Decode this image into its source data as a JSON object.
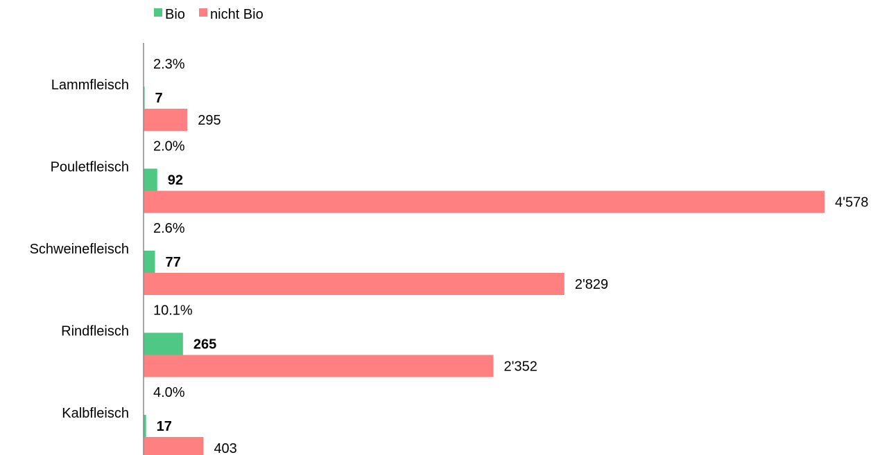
{
  "chart_data": {
    "type": "bar",
    "orientation": "horizontal",
    "categories": [
      "Lammfleisch",
      "Pouletfleisch",
      "Schweinefleisch",
      "Rindfleisch",
      "Kalbfleisch"
    ],
    "series": [
      {
        "name": "Bio",
        "color": "#4ec884",
        "values": [
          7,
          92,
          77,
          265,
          17
        ],
        "labels": [
          "7",
          "92",
          "77",
          "265",
          "17"
        ]
      },
      {
        "name": "nicht Bio",
        "color": "#ff8080",
        "values": [
          295,
          4578,
          2829,
          2352,
          403
        ],
        "labels": [
          "295",
          "4'578",
          "2'829",
          "2'352",
          "403"
        ]
      }
    ],
    "bio_share_labels": [
      "2.3%",
      "2.0%",
      "2.6%",
      "10.1%",
      "4.0%"
    ],
    "legend_position": "top",
    "xlim": [
      0,
      4800
    ],
    "grid": false
  }
}
